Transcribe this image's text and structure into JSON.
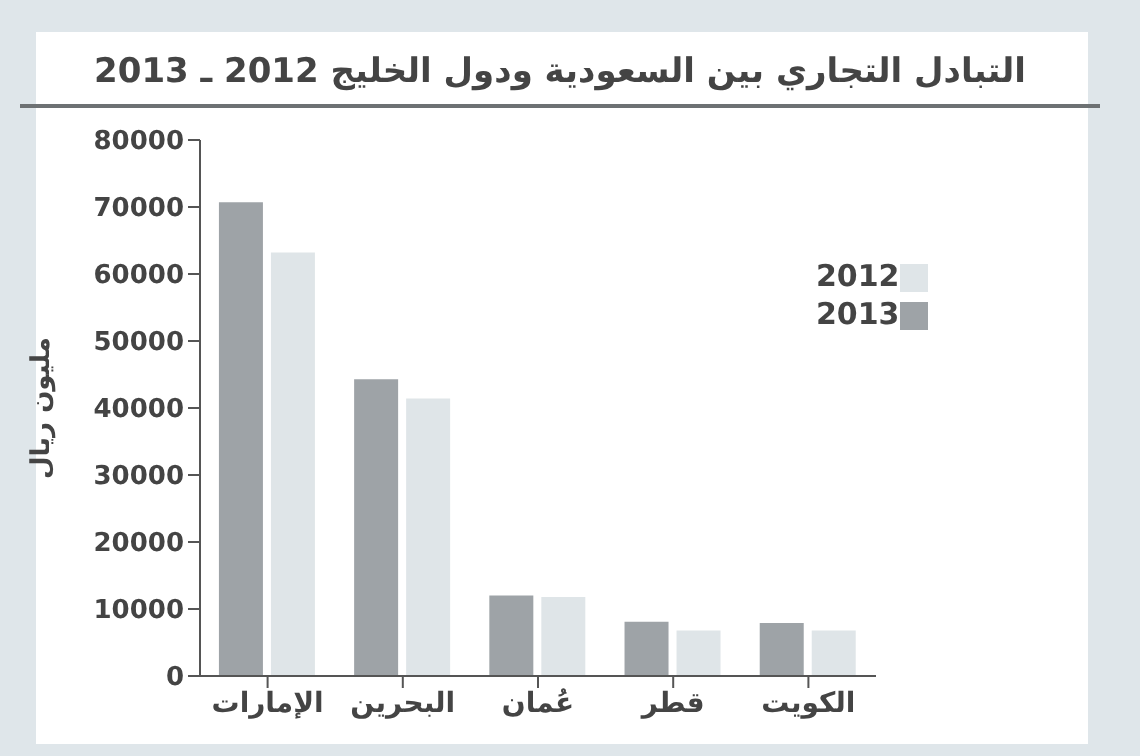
{
  "chart_data": {
    "type": "bar",
    "title": "التبادل التجاري بين السعودية ودول الخليج  2012 ـ 2013",
    "ylabel": "مليون ريال",
    "categories": [
      "الإمارات",
      "البحرين",
      "عُمان",
      "قطر",
      "الكويت"
    ],
    "series": [
      {
        "name": "2013",
        "color": "#9ea3a7",
        "values": [
          70700,
          44300,
          12000,
          8100,
          7900
        ]
      },
      {
        "name": "2012",
        "color": "#dfe5e8",
        "values": [
          63200,
          41400,
          11800,
          6800,
          6800
        ]
      }
    ],
    "ylim": [
      0,
      80000
    ],
    "yticks": [
      0,
      10000,
      20000,
      30000,
      40000,
      50000,
      60000,
      70000,
      80000
    ],
    "grid": false,
    "legend": "top right"
  }
}
